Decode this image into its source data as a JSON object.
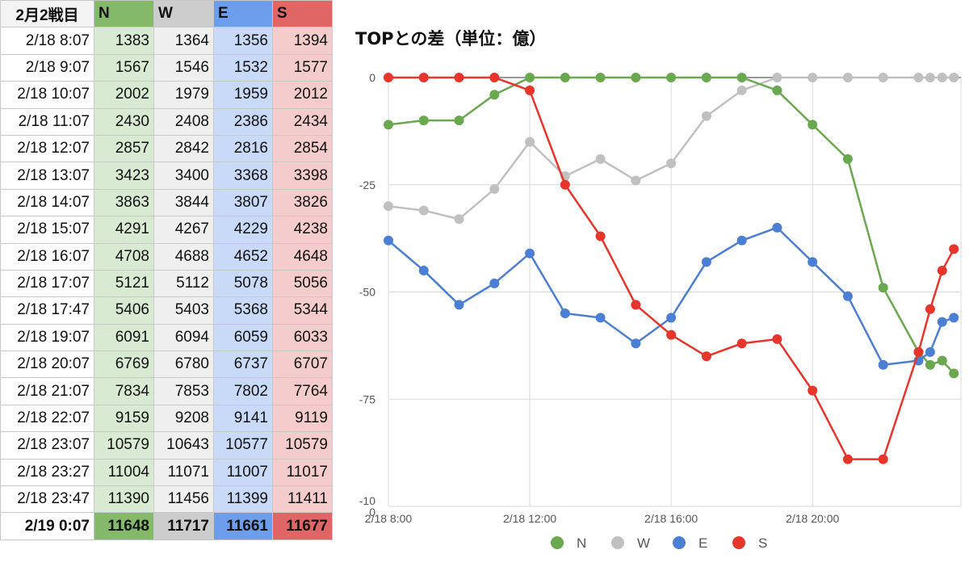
{
  "table": {
    "header": [
      "2月2戦目",
      "N",
      "W",
      "E",
      "S"
    ],
    "header_colors": [
      "#f4f4f4",
      "#84b96a",
      "#cccccc",
      "#6d9eeb",
      "#e06666"
    ],
    "col_colors": [
      "#ffffff",
      "#d9ead3",
      "#efefef",
      "#c9daf8",
      "#f4cccc"
    ],
    "rows": [
      [
        "2/18 8:07",
        "1383",
        "1364",
        "1356",
        "1394"
      ],
      [
        "2/18 9:07",
        "1567",
        "1546",
        "1532",
        "1577"
      ],
      [
        "2/18 10:07",
        "2002",
        "1979",
        "1959",
        "2012"
      ],
      [
        "2/18 11:07",
        "2430",
        "2408",
        "2386",
        "2434"
      ],
      [
        "2/18 12:07",
        "2857",
        "2842",
        "2816",
        "2854"
      ],
      [
        "2/18 13:07",
        "3423",
        "3400",
        "3368",
        "3398"
      ],
      [
        "2/18 14:07",
        "3863",
        "3844",
        "3807",
        "3826"
      ],
      [
        "2/18 15:07",
        "4291",
        "4267",
        "4229",
        "4238"
      ],
      [
        "2/18 16:07",
        "4708",
        "4688",
        "4652",
        "4648"
      ],
      [
        "2/18 17:07",
        "5121",
        "5112",
        "5078",
        "5056"
      ],
      [
        "2/18 17:47",
        "5406",
        "5403",
        "5368",
        "5344"
      ],
      [
        "2/18 19:07",
        "6091",
        "6094",
        "6059",
        "6033"
      ],
      [
        "2/18 20:07",
        "6769",
        "6780",
        "6737",
        "6707"
      ],
      [
        "2/18 21:07",
        "7834",
        "7853",
        "7802",
        "7764"
      ],
      [
        "2/18 22:07",
        "9159",
        "9208",
        "9141",
        "9119"
      ],
      [
        "2/18 23:07",
        "10579",
        "10643",
        "10577",
        "10579"
      ],
      [
        "2/18 23:27",
        "11004",
        "11071",
        "11007",
        "11017"
      ],
      [
        "2/18 23:47",
        "11390",
        "11456",
        "11399",
        "11411"
      ],
      [
        "2/19 0:07",
        "11648",
        "11717",
        "11661",
        "11677"
      ]
    ]
  },
  "chart_data": {
    "type": "line",
    "title": "TOPとの差（単位：億）",
    "xlabel": "",
    "ylabel": "",
    "x": [
      8,
      9,
      10,
      11,
      12,
      13,
      14,
      15,
      16,
      17,
      18,
      19,
      20,
      21,
      22,
      23,
      23.33,
      23.67,
      24
    ],
    "x_ticks": [
      {
        "value": 8,
        "label": "2/18 8:00"
      },
      {
        "value": 12,
        "label": "2/18 12:00"
      },
      {
        "value": 16,
        "label": "2/18 16:00"
      },
      {
        "value": 20,
        "label": "2/18 20:00"
      }
    ],
    "xlim": [
      8,
      24.2
    ],
    "ylim": [
      -100,
      0
    ],
    "y_ticks": [
      {
        "value": 0,
        "label": "0"
      },
      {
        "value": -25,
        "label": "-25"
      },
      {
        "value": -50,
        "label": "-50"
      },
      {
        "value": -75,
        "label": "-75"
      },
      {
        "value": -100,
        "label": "-10\n0"
      }
    ],
    "grid": true,
    "legend_position": "bottom",
    "series": [
      {
        "name": "N",
        "color": "#6aa84f",
        "values": [
          -11,
          -10,
          -10,
          -4,
          0,
          0,
          0,
          0,
          0,
          0,
          0,
          -3,
          -11,
          -19,
          -49,
          -64,
          -67,
          -66,
          -69
        ]
      },
      {
        "name": "W",
        "color": "#c0c0c0",
        "values": [
          -30,
          -31,
          -33,
          -26,
          -15,
          -23,
          -19,
          -24,
          -20,
          -9,
          -3,
          0,
          0,
          0,
          0,
          0,
          0,
          0,
          0
        ]
      },
      {
        "name": "E",
        "color": "#4a7fd4",
        "values": [
          -38,
          -45,
          -53,
          -48,
          -41,
          -55,
          -56,
          -62,
          -56,
          -43,
          -38,
          -35,
          -43,
          -51,
          -67,
          -66,
          -64,
          -57,
          -56
        ]
      },
      {
        "name": "S",
        "color": "#e8352b",
        "values": [
          0,
          0,
          0,
          0,
          -3,
          -25,
          -37,
          -53,
          -60,
          -65,
          -62,
          -61,
          -73,
          -89,
          -89,
          -64,
          -54,
          -45,
          -40
        ]
      }
    ]
  }
}
